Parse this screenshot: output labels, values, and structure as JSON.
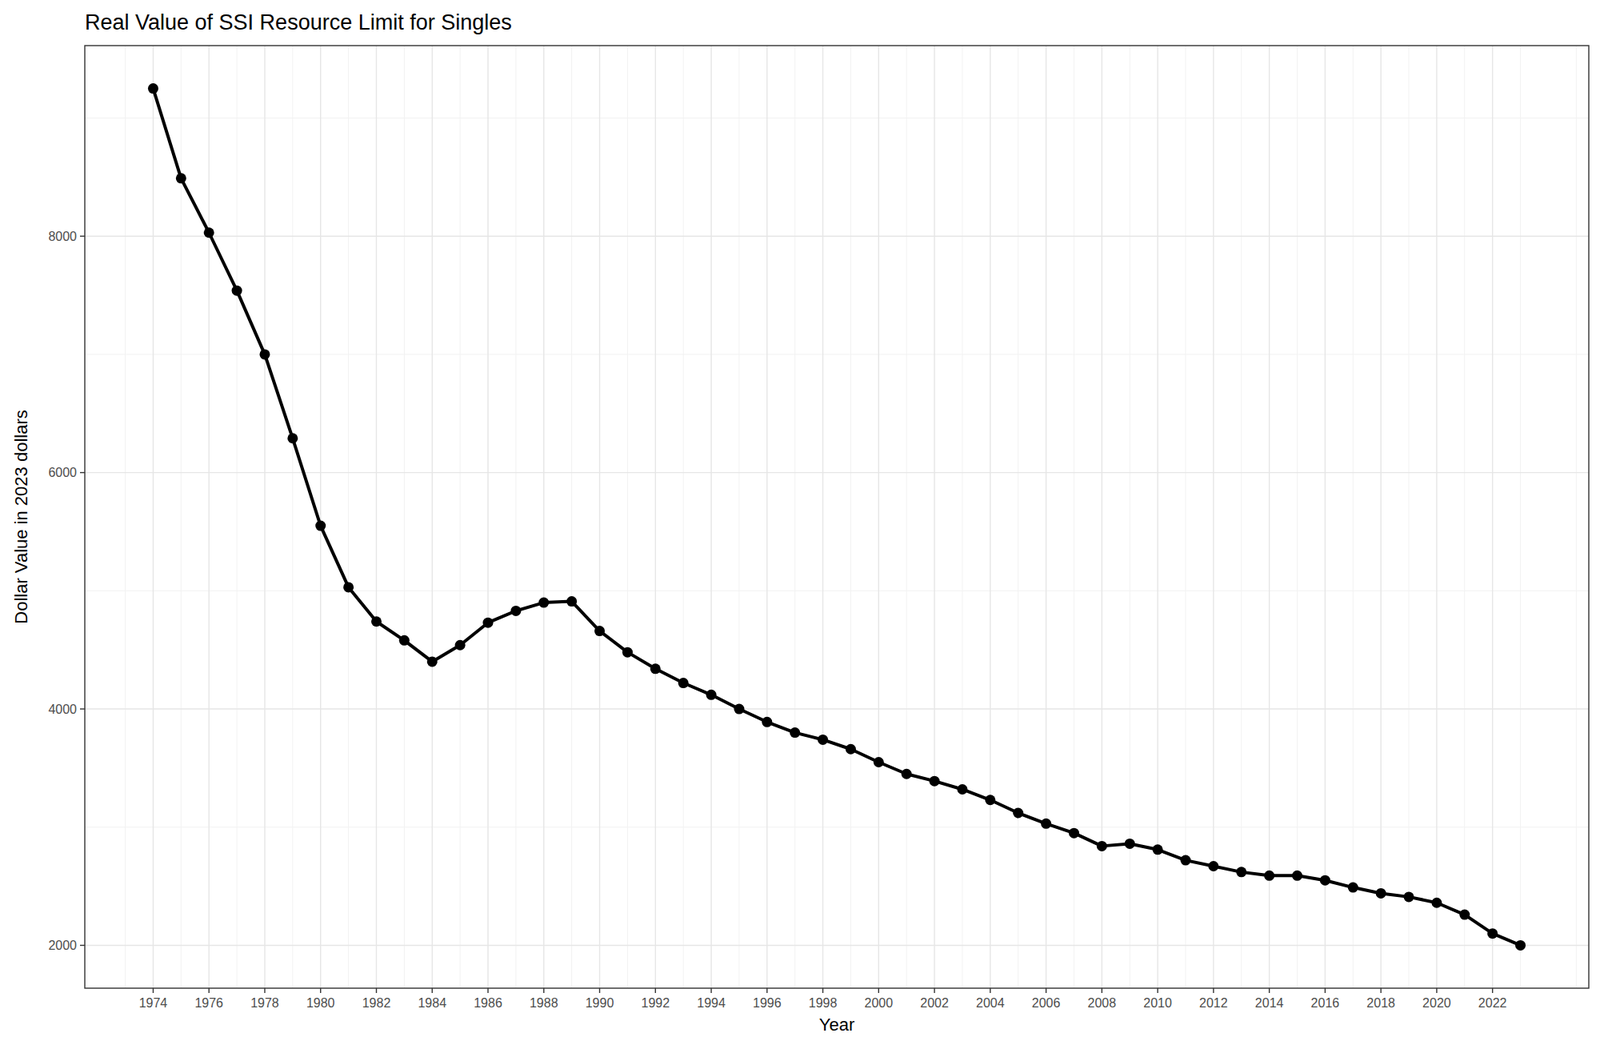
{
  "chart_data": {
    "type": "line",
    "title": "Real Value of SSI Resource Limit for Singles",
    "x_label": "Year",
    "y_label": "Dollar Value in 2023 dollars",
    "x": [
      1974,
      1975,
      1976,
      1977,
      1978,
      1979,
      1980,
      1981,
      1982,
      1983,
      1984,
      1985,
      1986,
      1987,
      1988,
      1989,
      1990,
      1991,
      1992,
      1993,
      1994,
      1995,
      1996,
      1997,
      1998,
      1999,
      2000,
      2001,
      2002,
      2003,
      2004,
      2005,
      2006,
      2007,
      2008,
      2009,
      2010,
      2011,
      2012,
      2013,
      2014,
      2015,
      2016,
      2017,
      2018,
      2019,
      2020,
      2021,
      2022,
      2023
    ],
    "values": [
      9250,
      8490,
      8030,
      7540,
      7000,
      6290,
      5550,
      5030,
      4740,
      4580,
      4400,
      4540,
      4730,
      4830,
      4900,
      4910,
      4660,
      4480,
      4340,
      4220,
      4120,
      4000,
      3890,
      3800,
      3740,
      3660,
      3550,
      3450,
      3390,
      3320,
      3230,
      3120,
      3030,
      2950,
      2840,
      2860,
      2810,
      2720,
      2670,
      2620,
      2590,
      2590,
      2550,
      2490,
      2440,
      2410,
      2360,
      2260,
      2100,
      2000
    ],
    "color": "#000000",
    "marker": "circle",
    "xlim": [
      1971.55,
      2025.45
    ],
    "ylim": [
      1637.5,
      9612.5
    ],
    "xticks": [
      1974,
      1976,
      1978,
      1980,
      1982,
      1984,
      1986,
      1988,
      1990,
      1992,
      1994,
      1996,
      1998,
      2000,
      2002,
      2004,
      2006,
      2008,
      2010,
      2012,
      2014,
      2016,
      2018,
      2020,
      2022
    ],
    "yticks": [
      2000,
      4000,
      6000,
      8000
    ],
    "grid": true
  }
}
